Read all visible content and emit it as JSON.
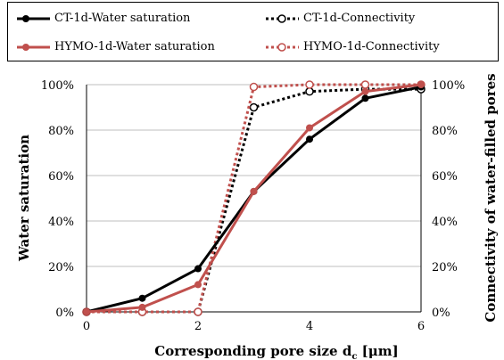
{
  "chart_data": {
    "type": "line",
    "xlabel": "Corresponding pore size d",
    "xlabel_sub": "c",
    "xlabel_unit": " [μm]",
    "ylabel": "Water saturation",
    "y2label": "Connectivity of water-filled pores",
    "x_ticks": [
      "0",
      "2",
      "4",
      "6"
    ],
    "y_ticks": [
      "0%",
      "20%",
      "40%",
      "60%",
      "80%",
      "100%"
    ],
    "y2_ticks": [
      "0%",
      "20%",
      "40%",
      "60%",
      "80%",
      "100%"
    ],
    "xlim": [
      0,
      6
    ],
    "ylim": [
      0,
      100
    ],
    "y2lim": [
      0,
      100
    ],
    "grid": "horizontal",
    "legend_position": "top",
    "x": [
      0,
      1,
      2,
      3,
      4,
      5,
      6
    ],
    "series": [
      {
        "name": "CT-1d-Water saturation",
        "axis": "left",
        "style": "solid",
        "color": "#000000",
        "values": [
          0,
          6,
          19,
          53,
          76,
          94,
          99
        ]
      },
      {
        "name": "HYMO-1d-Water saturation",
        "axis": "left",
        "style": "solid",
        "color": "#c0504d",
        "values": [
          0,
          2,
          12,
          53,
          81,
          97,
          100
        ]
      },
      {
        "name": "CT-1d-Connectivity",
        "axis": "right",
        "style": "dotted",
        "color": "#000000",
        "values": [
          0,
          0,
          0,
          90,
          97,
          98,
          98
        ]
      },
      {
        "name": "HYMO-1d-Connectivity",
        "axis": "right",
        "style": "dotted",
        "color": "#c0504d",
        "values": [
          0,
          0,
          0,
          99,
          100,
          100,
          100
        ]
      }
    ]
  }
}
